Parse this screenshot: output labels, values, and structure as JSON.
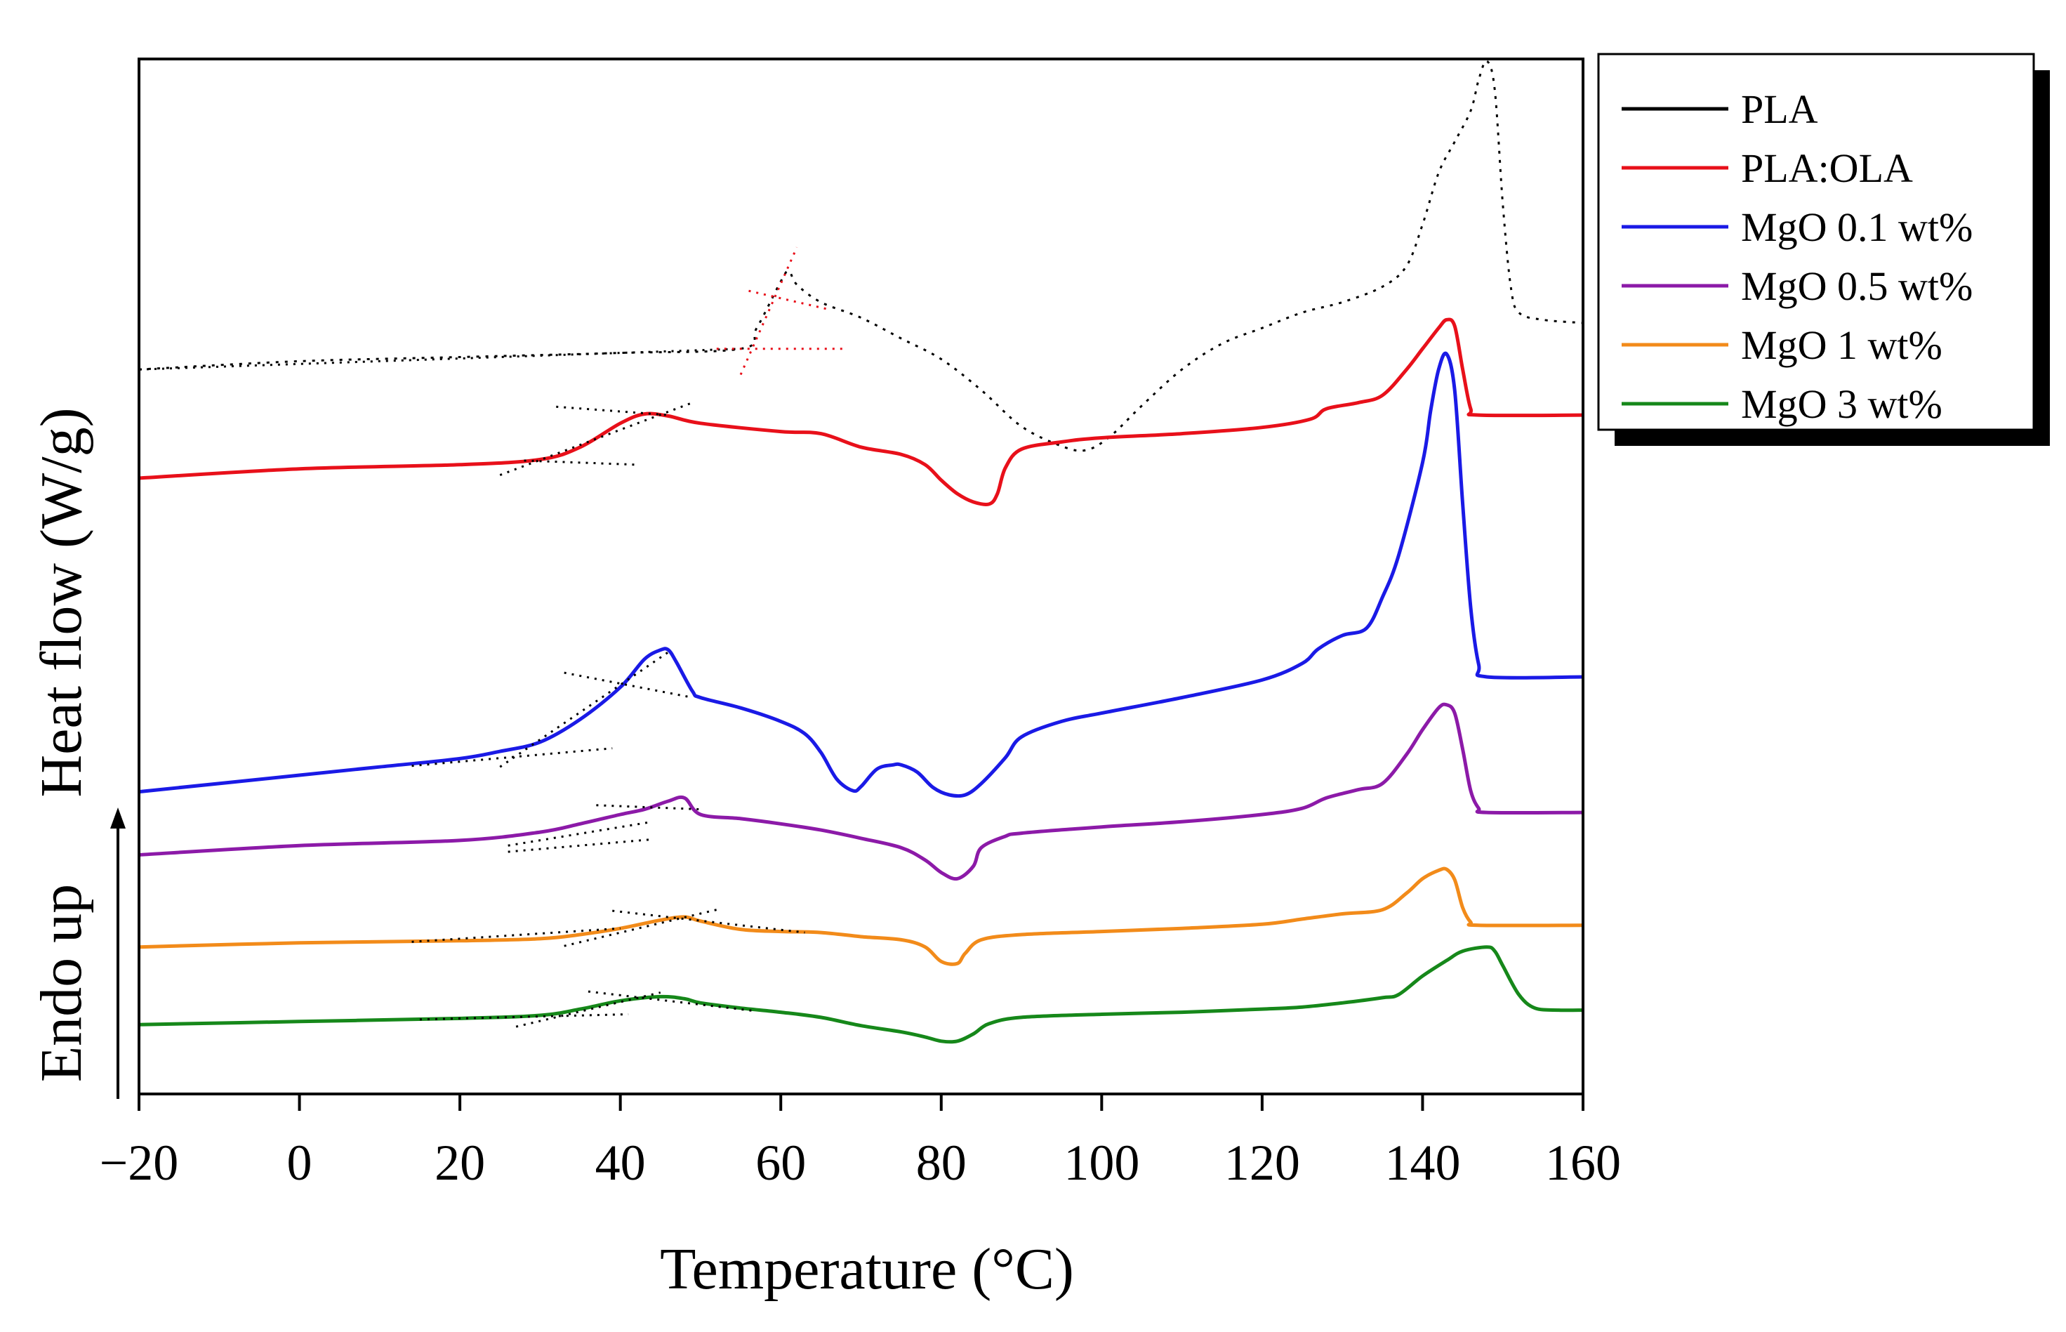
{
  "chart_data": {
    "type": "line",
    "title": "",
    "xlabel": "Temperature (°C)",
    "ylabel": "Heat flow (W/g)",
    "ylabel_secondary": "Endo up",
    "xlim": [
      -20,
      160
    ],
    "ylim": [
      0,
      100
    ],
    "x_ticks": [
      -20,
      0,
      20,
      40,
      60,
      80,
      100,
      120,
      140,
      160
    ],
    "x_tick_labels": [
      "−20",
      "0",
      "20",
      "40",
      "60",
      "80",
      "100",
      "120",
      "140",
      "160"
    ],
    "y_ticks_shown": false,
    "legend_position": "top-right, outside plot",
    "series": [
      {
        "name": "PLA",
        "color": "#000000",
        "style": "dotted",
        "points": [
          [
            -20,
            70.0
          ],
          [
            0,
            70.8
          ],
          [
            20,
            71.2
          ],
          [
            40,
            71.6
          ],
          [
            55,
            72.0
          ],
          [
            57,
            74.0
          ],
          [
            60,
            78.5
          ],
          [
            61,
            79.5
          ],
          [
            62,
            78.2
          ],
          [
            65,
            76.5
          ],
          [
            70,
            75.0
          ],
          [
            75,
            73.0
          ],
          [
            80,
            71.0
          ],
          [
            85,
            68.0
          ],
          [
            90,
            64.5
          ],
          [
            95,
            62.6
          ],
          [
            98,
            62.2
          ],
          [
            101,
            63.5
          ],
          [
            105,
            66.5
          ],
          [
            110,
            70.0
          ],
          [
            115,
            72.5
          ],
          [
            120,
            74.0
          ],
          [
            125,
            75.5
          ],
          [
            130,
            76.5
          ],
          [
            135,
            78.0
          ],
          [
            138,
            80.0
          ],
          [
            140,
            84.0
          ],
          [
            142,
            89.0
          ],
          [
            144,
            92.0
          ],
          [
            146,
            95.0
          ],
          [
            147,
            98.0
          ],
          [
            148,
            99.8
          ],
          [
            149,
            97.0
          ],
          [
            150,
            86.0
          ],
          [
            151,
            78.0
          ],
          [
            152,
            75.5
          ],
          [
            155,
            74.8
          ],
          [
            160,
            74.5
          ]
        ]
      },
      {
        "name": "PLA:OLA",
        "color": "#e8101a",
        "style": "solid",
        "points": [
          [
            -20,
            59.5
          ],
          [
            0,
            60.4
          ],
          [
            20,
            60.8
          ],
          [
            30,
            61.3
          ],
          [
            35,
            62.5
          ],
          [
            40,
            64.8
          ],
          [
            43,
            65.7
          ],
          [
            46,
            65.5
          ],
          [
            50,
            64.8
          ],
          [
            60,
            64.0
          ],
          [
            65,
            63.8
          ],
          [
            70,
            62.5
          ],
          [
            75,
            61.8
          ],
          [
            78,
            60.8
          ],
          [
            80,
            59.3
          ],
          [
            82,
            58.0
          ],
          [
            84,
            57.2
          ],
          [
            86,
            57.0
          ],
          [
            87,
            58.0
          ],
          [
            88,
            60.5
          ],
          [
            90,
            62.3
          ],
          [
            95,
            63.0
          ],
          [
            100,
            63.4
          ],
          [
            110,
            63.8
          ],
          [
            120,
            64.4
          ],
          [
            126,
            65.2
          ],
          [
            128,
            66.2
          ],
          [
            132,
            66.8
          ],
          [
            135,
            67.5
          ],
          [
            138,
            70.0
          ],
          [
            140,
            72.0
          ],
          [
            142,
            74.0
          ],
          [
            143,
            74.8
          ],
          [
            144,
            74.2
          ],
          [
            145,
            70.0
          ],
          [
            146,
            66.2
          ],
          [
            147,
            65.6
          ],
          [
            160,
            65.6
          ]
        ]
      },
      {
        "name": "MgO 0.1 wt%",
        "color": "#1a1ae6",
        "style": "solid",
        "points": [
          [
            -20,
            29.2
          ],
          [
            0,
            30.8
          ],
          [
            10,
            31.6
          ],
          [
            20,
            32.4
          ],
          [
            25,
            33.1
          ],
          [
            30,
            34.0
          ],
          [
            35,
            36.2
          ],
          [
            40,
            39.3
          ],
          [
            43,
            42.0
          ],
          [
            45,
            42.9
          ],
          [
            46,
            42.9
          ],
          [
            47,
            41.7
          ],
          [
            49,
            38.9
          ],
          [
            50,
            38.3
          ],
          [
            55,
            37.3
          ],
          [
            60,
            36.0
          ],
          [
            63,
            34.8
          ],
          [
            65,
            33.0
          ],
          [
            67,
            30.4
          ],
          [
            69,
            29.3
          ],
          [
            70,
            29.7
          ],
          [
            72,
            31.4
          ],
          [
            74,
            31.8
          ],
          [
            75,
            31.8
          ],
          [
            77,
            31.1
          ],
          [
            79,
            29.6
          ],
          [
            81,
            28.9
          ],
          [
            83,
            28.9
          ],
          [
            85,
            30.0
          ],
          [
            88,
            32.5
          ],
          [
            90,
            34.5
          ],
          [
            95,
            36.0
          ],
          [
            100,
            36.8
          ],
          [
            110,
            38.3
          ],
          [
            120,
            40.0
          ],
          [
            125,
            41.6
          ],
          [
            127,
            43.0
          ],
          [
            130,
            44.3
          ],
          [
            133,
            45.0
          ],
          [
            135,
            48.0
          ],
          [
            137,
            52.0
          ],
          [
            140,
            61.0
          ],
          [
            141,
            66.0
          ],
          [
            142,
            70.0
          ],
          [
            143,
            71.5
          ],
          [
            144,
            68.0
          ],
          [
            145,
            57.0
          ],
          [
            146,
            47.0
          ],
          [
            147,
            41.5
          ],
          [
            148,
            40.3
          ],
          [
            160,
            40.3
          ]
        ]
      },
      {
        "name": "MgO 0.5 wt%",
        "color": "#8c1aa8",
        "style": "solid",
        "points": [
          [
            -20,
            23.1
          ],
          [
            0,
            24.0
          ],
          [
            20,
            24.5
          ],
          [
            30,
            25.3
          ],
          [
            35,
            26.1
          ],
          [
            40,
            27.0
          ],
          [
            43,
            27.5
          ],
          [
            46,
            28.3
          ],
          [
            48,
            28.6
          ],
          [
            50,
            27.0
          ],
          [
            55,
            26.6
          ],
          [
            60,
            26.1
          ],
          [
            65,
            25.5
          ],
          [
            70,
            24.7
          ],
          [
            75,
            23.8
          ],
          [
            78,
            22.6
          ],
          [
            80,
            21.4
          ],
          [
            82,
            20.8
          ],
          [
            84,
            22.0
          ],
          [
            85,
            23.8
          ],
          [
            88,
            24.9
          ],
          [
            90,
            25.2
          ],
          [
            100,
            25.8
          ],
          [
            110,
            26.3
          ],
          [
            120,
            27.0
          ],
          [
            125,
            27.6
          ],
          [
            128,
            28.6
          ],
          [
            132,
            29.4
          ],
          [
            135,
            30.0
          ],
          [
            138,
            32.8
          ],
          [
            140,
            35.2
          ],
          [
            142,
            37.3
          ],
          [
            143,
            37.6
          ],
          [
            144,
            36.8
          ],
          [
            145,
            33.3
          ],
          [
            146,
            29.3
          ],
          [
            147,
            27.6
          ],
          [
            148,
            27.2
          ],
          [
            160,
            27.2
          ]
        ]
      },
      {
        "name": "MgO 1 wt%",
        "color": "#f28b1a",
        "style": "solid",
        "points": [
          [
            -20,
            14.2
          ],
          [
            0,
            14.6
          ],
          [
            20,
            14.8
          ],
          [
            30,
            15.0
          ],
          [
            35,
            15.4
          ],
          [
            40,
            16.0
          ],
          [
            45,
            16.8
          ],
          [
            48,
            17.1
          ],
          [
            50,
            16.7
          ],
          [
            55,
            15.9
          ],
          [
            60,
            15.7
          ],
          [
            65,
            15.6
          ],
          [
            70,
            15.2
          ],
          [
            75,
            14.9
          ],
          [
            78,
            14.2
          ],
          [
            80,
            12.8
          ],
          [
            82,
            12.6
          ],
          [
            83,
            13.6
          ],
          [
            85,
            14.9
          ],
          [
            90,
            15.4
          ],
          [
            100,
            15.7
          ],
          [
            110,
            16.0
          ],
          [
            120,
            16.4
          ],
          [
            125,
            16.9
          ],
          [
            130,
            17.4
          ],
          [
            135,
            17.8
          ],
          [
            138,
            19.4
          ],
          [
            140,
            20.8
          ],
          [
            142,
            21.6
          ],
          [
            143,
            21.7
          ],
          [
            144,
            20.7
          ],
          [
            145,
            18.0
          ],
          [
            146,
            16.6
          ],
          [
            147,
            16.3
          ],
          [
            160,
            16.3
          ]
        ]
      },
      {
        "name": "MgO 3 wt%",
        "color": "#16881a",
        "style": "solid",
        "points": [
          [
            -20,
            6.7
          ],
          [
            0,
            7.0
          ],
          [
            20,
            7.3
          ],
          [
            30,
            7.6
          ],
          [
            35,
            8.2
          ],
          [
            40,
            9.0
          ],
          [
            45,
            9.4
          ],
          [
            48,
            9.2
          ],
          [
            50,
            8.8
          ],
          [
            55,
            8.3
          ],
          [
            60,
            7.9
          ],
          [
            65,
            7.4
          ],
          [
            70,
            6.6
          ],
          [
            75,
            6.0
          ],
          [
            78,
            5.5
          ],
          [
            80,
            5.1
          ],
          [
            82,
            5.1
          ],
          [
            84,
            5.8
          ],
          [
            86,
            6.8
          ],
          [
            90,
            7.4
          ],
          [
            100,
            7.7
          ],
          [
            110,
            7.9
          ],
          [
            120,
            8.2
          ],
          [
            125,
            8.4
          ],
          [
            130,
            8.8
          ],
          [
            135,
            9.3
          ],
          [
            137,
            9.6
          ],
          [
            140,
            11.4
          ],
          [
            143,
            12.9
          ],
          [
            145,
            13.8
          ],
          [
            148,
            14.2
          ],
          [
            149,
            13.8
          ],
          [
            150,
            12.4
          ],
          [
            152,
            9.6
          ],
          [
            154,
            8.3
          ],
          [
            157,
            8.1
          ],
          [
            160,
            8.1
          ]
        ]
      }
    ],
    "tangent_lines": [
      {
        "color": "#000000",
        "points": [
          [
            -20,
            70.0
          ],
          [
            55,
            72.0
          ]
        ]
      },
      {
        "color": "#e8101a",
        "points": [
          [
            52,
            72.0
          ],
          [
            68,
            72.0
          ]
        ]
      },
      {
        "color": "#e8101a",
        "points": [
          [
            55,
            69.5
          ],
          [
            62,
            81.8
          ]
        ]
      },
      {
        "color": "#e8101a",
        "points": [
          [
            56,
            77.6
          ],
          [
            66,
            75.8
          ]
        ]
      },
      {
        "color": "#000000",
        "points": [
          [
            25,
            59.8
          ],
          [
            49,
            66.8
          ]
        ]
      },
      {
        "color": "#000000",
        "points": [
          [
            28,
            61.2
          ],
          [
            42,
            60.8
          ]
        ]
      },
      {
        "color": "#000000",
        "points": [
          [
            32,
            66.4
          ],
          [
            46,
            65.6
          ]
        ]
      },
      {
        "color": "#000000",
        "points": [
          [
            14,
            31.7
          ],
          [
            39,
            33.4
          ]
        ]
      },
      {
        "color": "#000000",
        "points": [
          [
            25,
            31.6
          ],
          [
            46,
            42.7
          ]
        ]
      },
      {
        "color": "#000000",
        "points": [
          [
            33,
            40.7
          ],
          [
            49,
            38.3
          ]
        ]
      },
      {
        "color": "#000000",
        "points": [
          [
            26,
            24.0
          ],
          [
            44,
            26.3
          ]
        ]
      },
      {
        "color": "#000000",
        "points": [
          [
            26,
            23.4
          ],
          [
            44,
            24.6
          ]
        ]
      },
      {
        "color": "#000000",
        "points": [
          [
            37,
            27.9
          ],
          [
            50,
            27.5
          ]
        ]
      },
      {
        "color": "#000000",
        "points": [
          [
            14,
            14.7
          ],
          [
            40,
            16.0
          ]
        ]
      },
      {
        "color": "#000000",
        "points": [
          [
            33,
            14.3
          ],
          [
            52,
            17.8
          ]
        ]
      },
      {
        "color": "#000000",
        "points": [
          [
            39,
            17.7
          ],
          [
            63,
            15.6
          ]
        ]
      },
      {
        "color": "#000000",
        "points": [
          [
            15,
            7.2
          ],
          [
            41,
            7.7
          ]
        ]
      },
      {
        "color": "#000000",
        "points": [
          [
            27,
            6.5
          ],
          [
            45,
            9.8
          ]
        ]
      },
      {
        "color": "#000000",
        "points": [
          [
            36,
            9.9
          ],
          [
            57,
            8.0
          ]
        ]
      }
    ]
  }
}
